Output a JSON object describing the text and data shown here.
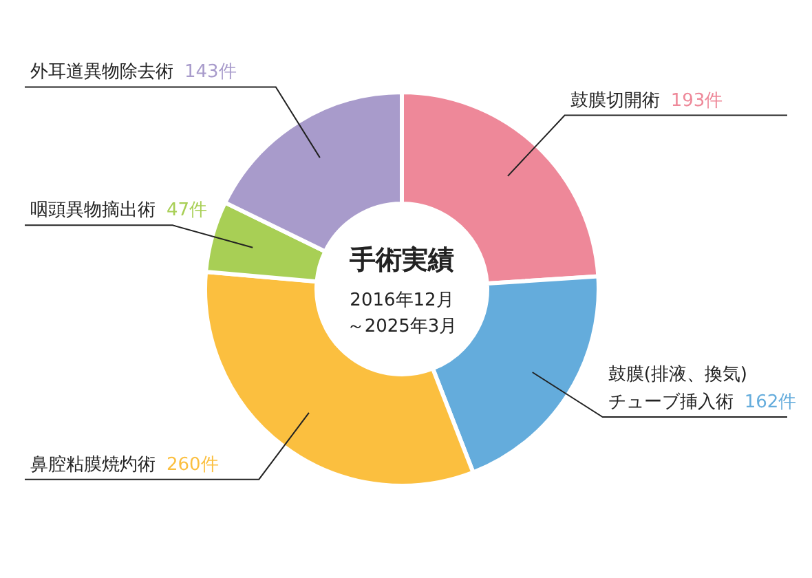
{
  "chart_data": {
    "type": "donut",
    "title": "手術実績",
    "subtitle": "2016年12月",
    "annotations": [
      "～2025年3月"
    ],
    "categories": [
      "鼓膜切開術",
      "鼓膜(排液、換気)\nチューブ挿入術",
      "鼻腔粘膜焼灼術",
      "咽頭異物摘出術",
      "外耳道異物除去術"
    ],
    "values": [
      193,
      162,
      260,
      47,
      143
    ],
    "colors": [
      "#ee8899",
      "#64acdc",
      "#fbbf3f",
      "#a8cf55",
      "#a89bcb"
    ],
    "value_labels": [
      "193件",
      "162件",
      "260件",
      "47件",
      "143件"
    ]
  }
}
